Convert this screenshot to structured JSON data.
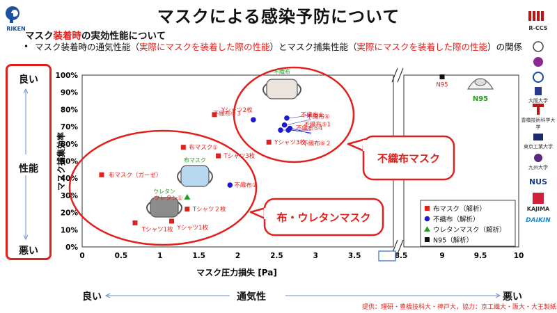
{
  "header": {
    "title": "マスクによる感染予防について",
    "subtitle_prefix": "マスク",
    "subtitle_highlight": "装着時",
    "subtitle_suffix": "の実効性能について",
    "bullet_part1": "マスク装着時の通気性能（",
    "bullet_red1": "実際にマスクを装着した際の性能",
    "bullet_part2": "）とマスク捕集性能（",
    "bullet_red2": "実際にマスクを装着した際の性能",
    "bullet_part3": "）の関係",
    "riken_logo_text": "RIKEN"
  },
  "quality_axis": {
    "good": "良い",
    "middle": "性能",
    "bad": "悪い"
  },
  "airflow_axis": {
    "good": "良い",
    "title": "通気性",
    "bad": "悪い"
  },
  "credit": "提供：理研・豊橋技科大・神戸大，協力：京工繊大・阪大・大王製紙",
  "logos": [
    "R-CCS",
    "",
    "",
    "",
    "大阪大学",
    "",
    "豊橋技術科学大学",
    "東京工業大学",
    "九州大学",
    "NUS",
    "KAJIMA",
    "DAIKIN"
  ],
  "colors": {
    "cloth": "#e0201c",
    "nonwoven": "#1a1acc",
    "urethane": "#22a022",
    "n95": "#111111",
    "accent": "#e0201c"
  },
  "chart_data": {
    "type": "scatter",
    "title": "",
    "xlabel": "マスク圧力損失 [Pa]",
    "ylabel": "マスク捕集効率",
    "xlim": [
      0,
      10
    ],
    "ylim": [
      0,
      100
    ],
    "x_axis_break": [
      4,
      8.5
    ],
    "x_tick_labels": [
      "0",
      "0.5",
      "1",
      "1.5",
      "2",
      "2.5",
      "3",
      "3.5",
      "8.5",
      "9",
      "9.5",
      "10"
    ],
    "y_tick_labels": [
      "0%",
      "10%",
      "20%",
      "30%",
      "40%",
      "50%",
      "60%",
      "70%",
      "80%",
      "90%",
      "100%"
    ],
    "series": [
      {
        "name": "布マスク（解析）",
        "marker": "square",
        "color": "#e0201c",
        "points": [
          {
            "x": 0.25,
            "y": 42,
            "label": "布マスク（ガーゼ）"
          },
          {
            "x": 0.68,
            "y": 14,
            "label": "Tシャツ1枚"
          },
          {
            "x": 1.15,
            "y": 15,
            "label": "Yシャツ1枚"
          },
          {
            "x": 1.35,
            "y": 22,
            "label": "Tシャツ２枚"
          },
          {
            "x": 1.3,
            "y": 58,
            "label": "布マスク①"
          },
          {
            "x": 1.7,
            "y": 77,
            "label": "Yシャツ2枚"
          },
          {
            "x": 1.75,
            "y": 53,
            "label": "Tシャツ3枚"
          },
          {
            "x": 2.4,
            "y": 61,
            "label": "Yシャツ3枚"
          }
        ]
      },
      {
        "name": "不織布（解析）",
        "marker": "circle",
        "color": "#1a1acc",
        "points": [
          {
            "x": 1.9,
            "y": 36,
            "label": "不織布②"
          },
          {
            "x": 2.2,
            "y": 74,
            "label": "不織布⑤３"
          },
          {
            "x": 2.55,
            "y": 68,
            "label": "不織布⑤4"
          },
          {
            "x": 2.6,
            "y": 71,
            "label": "不織布⑤1"
          },
          {
            "x": 2.63,
            "y": 75,
            "label": "不織布①"
          },
          {
            "x": 2.65,
            "y": 68,
            "label": "不織布⑥２"
          },
          {
            "x": 2.67,
            "y": 69,
            "label": "不織布④"
          }
        ]
      },
      {
        "name": "ウレタンマスク（解析）",
        "marker": "triangle",
        "color": "#22a022",
        "points": [
          {
            "x": 1.35,
            "y": 29,
            "label": "ウレタン①"
          }
        ]
      },
      {
        "name": "N95（解析）",
        "marker": "square",
        "color": "#111111",
        "points": [
          {
            "x": 9.0,
            "y": 99,
            "label": "N95"
          }
        ]
      }
    ],
    "annotations": {
      "nonwoven_mask_icon": "不織布",
      "cloth_mask_icon": "布マスク",
      "urethane_mask_icon": "ウレタン",
      "n95_icon": "N95",
      "callout_nonwoven": "不織布マスク",
      "callout_cloth": "布・ウレタンマスク"
    },
    "legend_position": "bottom-right",
    "grid": false
  }
}
